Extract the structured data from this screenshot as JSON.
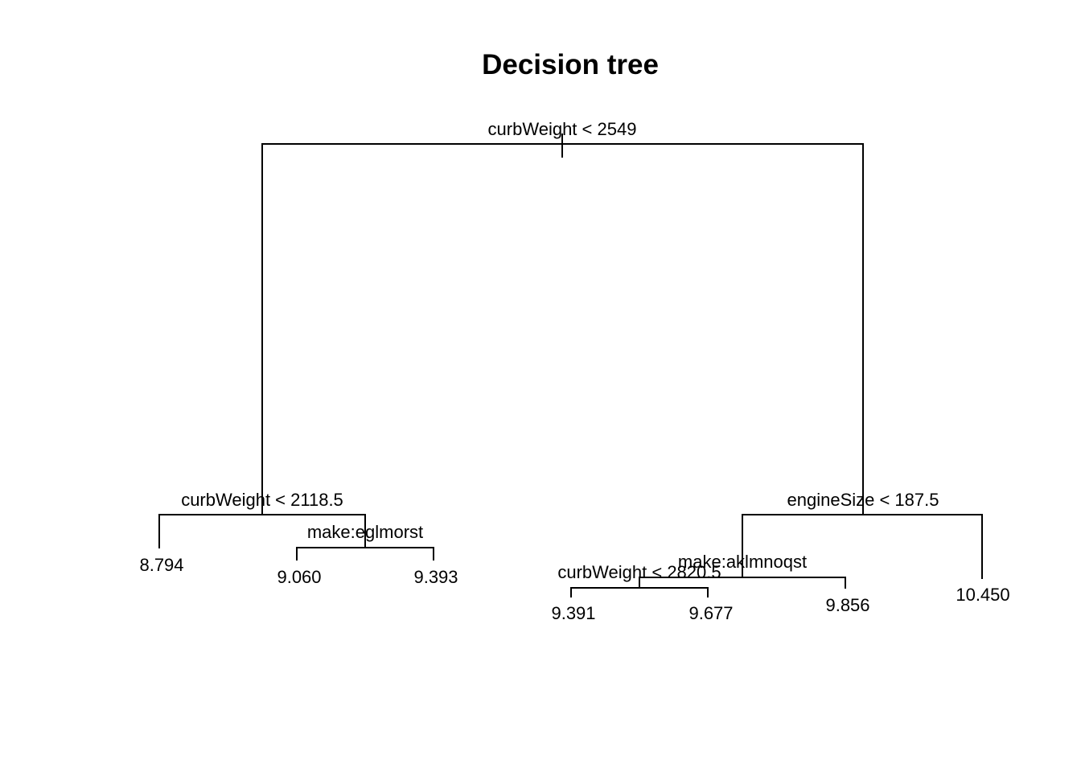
{
  "title": "Decision tree",
  "tree": {
    "root": {
      "split": "curbWeight < 2549",
      "left": {
        "split": "curbWeight < 2118.5",
        "left": {
          "leaf": "8.794"
        },
        "right": {
          "split": "make:eglmorst",
          "left": {
            "leaf": "9.060"
          },
          "right": {
            "leaf": "9.393"
          }
        }
      },
      "right": {
        "split": "engineSize < 187.5",
        "left": {
          "split": "make:aklmnoqst",
          "left": {
            "split": "curbWeight < 2820.5",
            "left": {
              "leaf": "9.391"
            },
            "right": {
              "leaf": "9.677"
            }
          },
          "right": {
            "leaf": "9.856"
          }
        },
        "right": {
          "leaf": "10.450"
        }
      }
    }
  }
}
